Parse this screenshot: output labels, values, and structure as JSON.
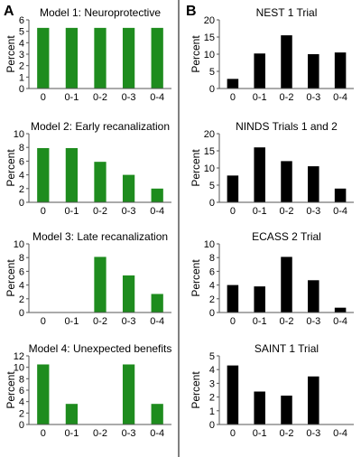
{
  "panels": [
    {
      "letter": "A"
    },
    {
      "letter": "B"
    }
  ],
  "chart_data": [
    {
      "type": "bar",
      "panel": "A",
      "title": "Model 1: Neuroprotective",
      "ylabel": "Percent",
      "categories": [
        "0",
        "0-1",
        "0-2",
        "0-3",
        "0-4"
      ],
      "values": [
        5.3,
        5.3,
        5.3,
        5.3,
        5.3
      ],
      "ylim": [
        0,
        6
      ],
      "yticks": [
        0,
        1,
        2,
        3,
        4,
        5,
        6
      ],
      "color": "#1e8c1e"
    },
    {
      "type": "bar",
      "panel": "A",
      "title": "Model 2: Early recanalization",
      "ylabel": "Percent",
      "categories": [
        "0",
        "0-1",
        "0-2",
        "0-3",
        "0-4"
      ],
      "values": [
        7.9,
        7.9,
        5.9,
        4.0,
        2.0
      ],
      "ylim": [
        0,
        10
      ],
      "yticks": [
        0,
        2,
        4,
        6,
        8,
        10
      ],
      "color": "#1e8c1e"
    },
    {
      "type": "bar",
      "panel": "A",
      "title": "Model 3: Late recanalization",
      "ylabel": "Percent",
      "categories": [
        "0",
        "0-1",
        "0-2",
        "0-3",
        "0-4"
      ],
      "values": [
        0,
        0,
        8.1,
        5.4,
        2.7
      ],
      "ylim": [
        0,
        10
      ],
      "yticks": [
        0,
        2,
        4,
        6,
        8,
        10
      ],
      "color": "#1e8c1e"
    },
    {
      "type": "bar",
      "panel": "A",
      "title": "Model 4: Unexpected benefits",
      "ylabel": "Percent",
      "categories": [
        "0",
        "0-1",
        "0-2",
        "0-3",
        "0-4"
      ],
      "values": [
        10.5,
        3.6,
        0,
        10.5,
        3.6
      ],
      "ylim": [
        0,
        12
      ],
      "yticks": [
        0,
        2,
        4,
        6,
        8,
        10,
        12
      ],
      "color": "#1e8c1e"
    },
    {
      "type": "bar",
      "panel": "B",
      "title": "NEST 1 Trial",
      "ylabel": "Percent",
      "categories": [
        "0",
        "0-1",
        "0-2",
        "0-3",
        "0-4"
      ],
      "values": [
        2.8,
        10.2,
        15.5,
        10.0,
        10.5
      ],
      "ylim": [
        0,
        20
      ],
      "yticks": [
        0,
        5,
        10,
        15,
        20
      ],
      "color": "#000000"
    },
    {
      "type": "bar",
      "panel": "B",
      "title": "NINDS Trials 1 and 2",
      "ylabel": "Percent",
      "categories": [
        "0",
        "0-1",
        "0-2",
        "0-3",
        "0-4"
      ],
      "values": [
        7.8,
        16.0,
        12.0,
        10.5,
        4.0
      ],
      "ylim": [
        0,
        20
      ],
      "yticks": [
        0,
        5,
        10,
        15,
        20
      ],
      "color": "#000000"
    },
    {
      "type": "bar",
      "panel": "B",
      "title": "ECASS 2 Trial",
      "ylabel": "Percent",
      "categories": [
        "0",
        "0-1",
        "0-2",
        "0-3",
        "0-4"
      ],
      "values": [
        4.0,
        3.8,
        8.1,
        4.7,
        0.7
      ],
      "ylim": [
        0,
        10
      ],
      "yticks": [
        0,
        2,
        4,
        6,
        8,
        10
      ],
      "color": "#000000"
    },
    {
      "type": "bar",
      "panel": "B",
      "title": "SAINT 1 Trial",
      "ylabel": "Percent",
      "categories": [
        "0",
        "0-1",
        "0-2",
        "0-3",
        "0-4"
      ],
      "values": [
        4.3,
        2.4,
        2.1,
        3.5,
        0
      ],
      "ylim": [
        0,
        5
      ],
      "yticks": [
        0,
        1,
        2,
        3,
        4,
        5
      ],
      "color": "#000000"
    }
  ]
}
